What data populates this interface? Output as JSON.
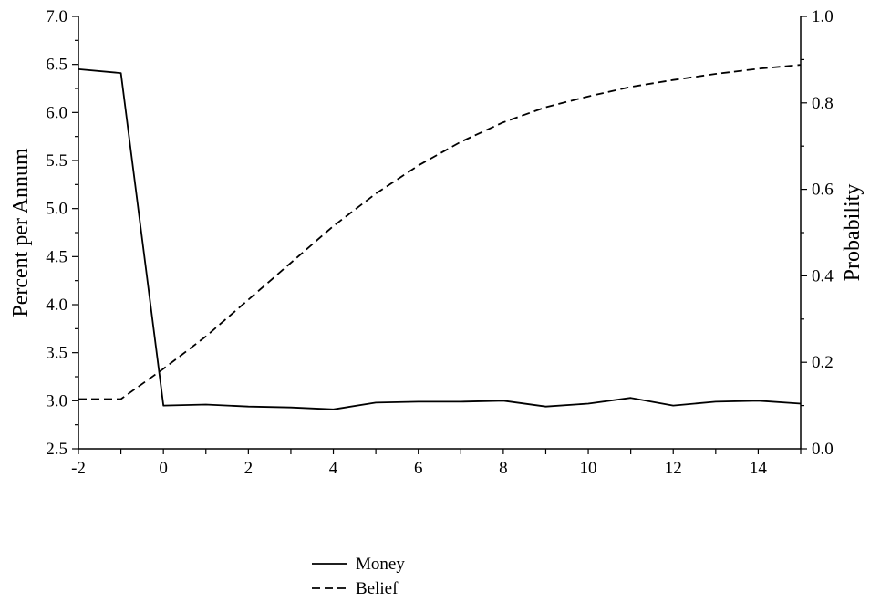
{
  "chart_data": {
    "type": "line",
    "title": "",
    "xlabel": "",
    "ylabel_left": "Percent per Annum",
    "ylabel_right": "Probability",
    "xlim": [
      -2,
      15
    ],
    "ylim_left": [
      2.5,
      7.0
    ],
    "ylim_right": [
      0.0,
      1.0
    ],
    "x_ticks": [
      -2,
      0,
      2,
      4,
      6,
      8,
      10,
      12,
      14
    ],
    "x_tick_labels": [
      "-2",
      "0",
      "2",
      "4",
      "6",
      "8",
      "10",
      "12",
      "14"
    ],
    "y_left_ticks": [
      2.5,
      3.0,
      3.5,
      4.0,
      4.5,
      5.0,
      5.5,
      6.0,
      6.5,
      7.0
    ],
    "y_left_tick_labels": [
      "2.5",
      "3.0",
      "3.5",
      "4.0",
      "4.5",
      "5.0",
      "5.5",
      "6.0",
      "6.5",
      "7.0"
    ],
    "y_right_ticks": [
      0.0,
      0.2,
      0.4,
      0.6,
      0.8,
      1.0
    ],
    "y_right_tick_labels": [
      "0.0",
      "0.2",
      "0.4",
      "0.6",
      "0.8",
      "1.0"
    ],
    "grid": false,
    "legend_position": "bottom-center",
    "series": [
      {
        "name": "Money",
        "axis": "left",
        "style": "solid",
        "color": "#000000",
        "x": [
          -2,
          -1,
          0,
          1,
          2,
          3,
          4,
          5,
          6,
          7,
          8,
          9,
          10,
          11,
          12,
          13,
          14,
          15
        ],
        "y": [
          6.45,
          6.41,
          2.95,
          2.96,
          2.94,
          2.93,
          2.91,
          2.98,
          2.99,
          2.99,
          3.0,
          2.94,
          2.97,
          3.03,
          2.95,
          2.99,
          3.0,
          2.97
        ]
      },
      {
        "name": "Belief",
        "axis": "right",
        "style": "dashed",
        "color": "#000000",
        "x": [
          -2,
          -1,
          0,
          1,
          2,
          3,
          4,
          5,
          6,
          7,
          8,
          9,
          10,
          11,
          12,
          13,
          14,
          15
        ],
        "y": [
          0.115,
          0.115,
          0.185,
          0.26,
          0.345,
          0.43,
          0.515,
          0.59,
          0.655,
          0.71,
          0.755,
          0.79,
          0.815,
          0.837,
          0.853,
          0.867,
          0.879,
          0.888
        ]
      }
    ]
  }
}
